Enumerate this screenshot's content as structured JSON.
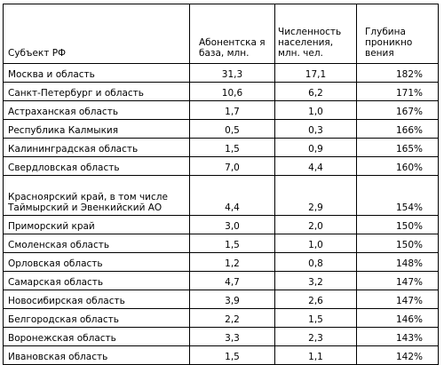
{
  "table": {
    "headers": {
      "subject": "Субъект РФ",
      "subscribers": "Абонентска я база, млн.",
      "population": "Численность населения, млн. чел.",
      "penetration": "Глубина проникно вения"
    },
    "rows": [
      {
        "region": "Москва и область",
        "subscribers": "31,3",
        "population": "17,1",
        "penetration": "182%"
      },
      {
        "region": "Санкт-Петербург и область",
        "subscribers": "10,6",
        "population": "6,2",
        "penetration": "171%"
      },
      {
        "region": "Астраханская область",
        "subscribers": "1,7",
        "population": "1,0",
        "penetration": "167%"
      },
      {
        "region": "Республика Калмыкия",
        "subscribers": "0,5",
        "population": "0,3",
        "penetration": "166%"
      },
      {
        "region": "Калининградская область",
        "subscribers": "1,5",
        "population": "0,9",
        "penetration": "165%"
      },
      {
        "region": "Свердловская область",
        "subscribers": "7,0",
        "population": "4,4",
        "penetration": "160%"
      },
      {
        "region": "Красноярский край, в том числе Таймырский и Эвенкийский АО",
        "subscribers": "4,4",
        "population": "2,9",
        "penetration": "154%"
      },
      {
        "region": "Приморский край",
        "subscribers": "3,0",
        "population": "2,0",
        "penetration": "150%"
      },
      {
        "region": "Смоленская область",
        "subscribers": "1,5",
        "population": "1,0",
        "penetration": "150%"
      },
      {
        "region": "Орловская область",
        "subscribers": "1,2",
        "population": "0,8",
        "penetration": "148%"
      },
      {
        "region": "Самарская область",
        "subscribers": "4,7",
        "population": "3,2",
        "penetration": "147%"
      },
      {
        "region": "Новосибирская область",
        "subscribers": "3,9",
        "population": "2,6",
        "penetration": "147%"
      },
      {
        "region": "Белгородская область",
        "subscribers": "2,2",
        "population": "1,5",
        "penetration": "146%"
      },
      {
        "region": "Воронежская область",
        "subscribers": "3,3",
        "population": "2,3",
        "penetration": "143%"
      },
      {
        "region": "Ивановская область",
        "subscribers": "1,5",
        "population": "1,1",
        "penetration": "142%"
      }
    ]
  }
}
